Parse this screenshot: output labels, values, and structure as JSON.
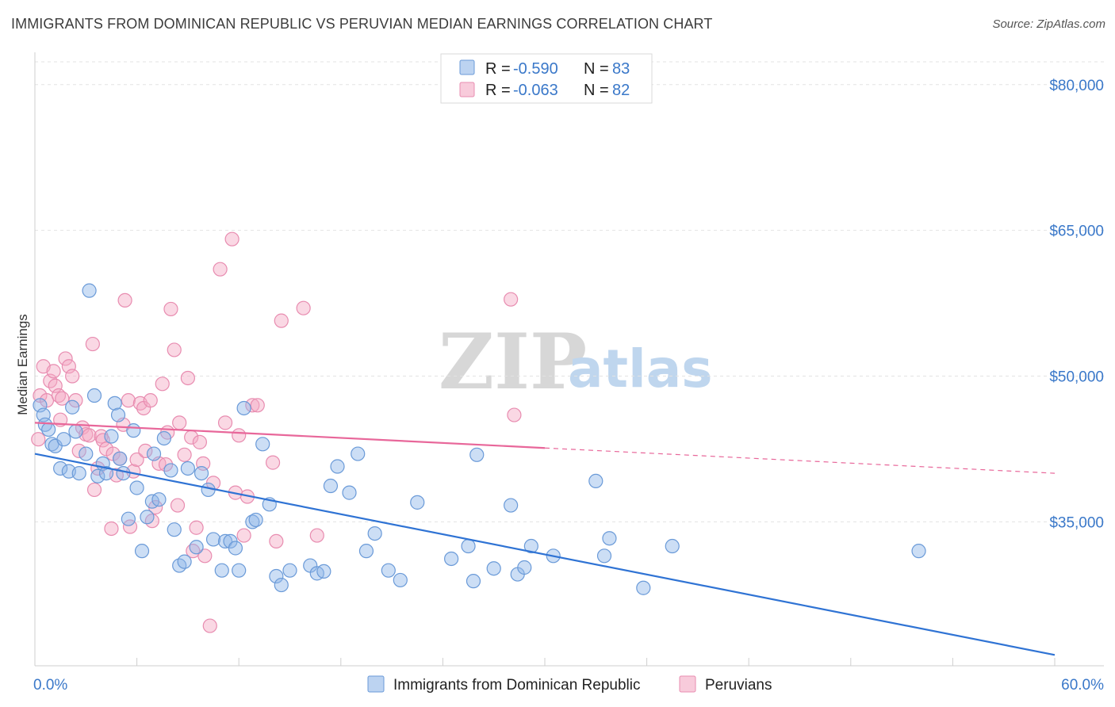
{
  "title": "IMMIGRANTS FROM DOMINICAN REPUBLIC VS PERUVIAN MEDIAN EARNINGS CORRELATION CHART",
  "source": "Source: ZipAtlas.com",
  "watermark": {
    "zip": "ZIP",
    "atlas": "atlas"
  },
  "colors": {
    "blue": "#8fb5e8",
    "blue_stroke": "#6a9ad8",
    "blue_line": "#2f73d4",
    "pink": "#f3a8c3",
    "pink_stroke": "#e88cb0",
    "pink_line": "#e8679a",
    "axis_text": "#3a78c9"
  },
  "legend_top": {
    "rows": [
      {
        "r_label": "R =",
        "r_value": "-0.590",
        "n_label": "N =",
        "n_value": "83"
      },
      {
        "r_label": "R =",
        "r_value": "-0.063",
        "n_label": "N =",
        "n_value": "82"
      }
    ]
  },
  "chart_data": {
    "type": "scatter",
    "title": "IMMIGRANTS FROM DOMINICAN REPUBLIC VS PERUVIAN MEDIAN EARNINGS CORRELATION CHART",
    "xlabel": "",
    "ylabel": "Median Earnings",
    "xlim": [
      0,
      60
    ],
    "ylim": [
      21000,
      83000
    ],
    "x_tick_labels": [
      "0.0%",
      "60.0%"
    ],
    "y_ticks": [
      35000,
      50000,
      65000,
      80000
    ],
    "y_tick_labels": [
      "$35,000",
      "$50,000",
      "$65,000",
      "$80,000"
    ],
    "grid": true,
    "legend_position": "top-center",
    "series": [
      {
        "name": "Immigrants from Dominican Republic",
        "r": -0.59,
        "n": 83,
        "trend": {
          "x0": 0,
          "y0": 42000,
          "x1": 60,
          "y1": 21300,
          "solid_until": 60
        },
        "points": [
          [
            0.3,
            47000
          ],
          [
            0.5,
            46000
          ],
          [
            0.6,
            45000
          ],
          [
            0.8,
            44500
          ],
          [
            1.0,
            43000
          ],
          [
            1.2,
            42800
          ],
          [
            1.5,
            40500
          ],
          [
            1.7,
            43500
          ],
          [
            2.0,
            40200
          ],
          [
            2.2,
            46800
          ],
          [
            2.4,
            44300
          ],
          [
            2.6,
            40000
          ],
          [
            3.0,
            42000
          ],
          [
            3.2,
            58800
          ],
          [
            3.5,
            48000
          ],
          [
            3.7,
            39700
          ],
          [
            4.0,
            41000
          ],
          [
            4.2,
            40000
          ],
          [
            4.5,
            43800
          ],
          [
            4.7,
            47200
          ],
          [
            4.9,
            46000
          ],
          [
            5.0,
            41500
          ],
          [
            5.2,
            40000
          ],
          [
            5.5,
            35300
          ],
          [
            5.8,
            44400
          ],
          [
            6.0,
            38500
          ],
          [
            6.3,
            32000
          ],
          [
            6.6,
            35500
          ],
          [
            6.9,
            37100
          ],
          [
            7.0,
            42000
          ],
          [
            7.3,
            37300
          ],
          [
            7.6,
            43600
          ],
          [
            8.0,
            40300
          ],
          [
            8.2,
            34200
          ],
          [
            8.5,
            30500
          ],
          [
            8.8,
            30900
          ],
          [
            9.0,
            40500
          ],
          [
            9.5,
            32400
          ],
          [
            9.8,
            40000
          ],
          [
            10.2,
            38300
          ],
          [
            10.5,
            33200
          ],
          [
            11.0,
            30000
          ],
          [
            11.2,
            33000
          ],
          [
            11.5,
            33000
          ],
          [
            11.8,
            32300
          ],
          [
            12.0,
            30000
          ],
          [
            12.3,
            46700
          ],
          [
            12.8,
            35000
          ],
          [
            13.0,
            35200
          ],
          [
            13.4,
            43000
          ],
          [
            13.8,
            36800
          ],
          [
            14.2,
            29400
          ],
          [
            14.5,
            28500
          ],
          [
            15.0,
            30000
          ],
          [
            16.2,
            30500
          ],
          [
            16.6,
            29700
          ],
          [
            17.0,
            29900
          ],
          [
            17.4,
            38700
          ],
          [
            17.8,
            40700
          ],
          [
            18.5,
            38000
          ],
          [
            19.0,
            42000
          ],
          [
            19.5,
            32000
          ],
          [
            20.0,
            33800
          ],
          [
            20.8,
            30000
          ],
          [
            21.5,
            29000
          ],
          [
            22.5,
            37000
          ],
          [
            24.5,
            31200
          ],
          [
            25.5,
            32500
          ],
          [
            25.8,
            28900
          ],
          [
            26.0,
            41900
          ],
          [
            27.0,
            30200
          ],
          [
            28.0,
            36700
          ],
          [
            28.4,
            29600
          ],
          [
            28.8,
            30300
          ],
          [
            29.2,
            32500
          ],
          [
            30.5,
            31500
          ],
          [
            33.0,
            39200
          ],
          [
            33.5,
            31500
          ],
          [
            33.8,
            33300
          ],
          [
            35.8,
            28200
          ],
          [
            37.5,
            32500
          ],
          [
            52.0,
            32000
          ]
        ]
      },
      {
        "name": "Peruvians",
        "r": -0.063,
        "n": 82,
        "trend": {
          "x0": 0,
          "y0": 45200,
          "x1": 60,
          "y1": 40000,
          "solid_until": 30
        },
        "points": [
          [
            0.2,
            43500
          ],
          [
            0.3,
            48000
          ],
          [
            0.5,
            51000
          ],
          [
            0.7,
            47500
          ],
          [
            0.9,
            49500
          ],
          [
            1.1,
            50500
          ],
          [
            1.2,
            49000
          ],
          [
            1.4,
            48000
          ],
          [
            1.5,
            45500
          ],
          [
            1.6,
            47700
          ],
          [
            1.8,
            51800
          ],
          [
            2.0,
            51000
          ],
          [
            2.2,
            50000
          ],
          [
            2.4,
            47500
          ],
          [
            2.6,
            42300
          ],
          [
            2.8,
            44700
          ],
          [
            3.0,
            44000
          ],
          [
            3.2,
            43900
          ],
          [
            3.4,
            53300
          ],
          [
            3.5,
            38300
          ],
          [
            3.7,
            40500
          ],
          [
            3.9,
            43800
          ],
          [
            4.0,
            43400
          ],
          [
            4.2,
            42500
          ],
          [
            4.5,
            34300
          ],
          [
            4.6,
            42000
          ],
          [
            4.8,
            39800
          ],
          [
            5.0,
            41500
          ],
          [
            5.2,
            45000
          ],
          [
            5.3,
            57800
          ],
          [
            5.5,
            47500
          ],
          [
            5.6,
            34500
          ],
          [
            5.8,
            40200
          ],
          [
            6.0,
            41400
          ],
          [
            6.2,
            47200
          ],
          [
            6.4,
            46700
          ],
          [
            6.5,
            42300
          ],
          [
            6.8,
            47500
          ],
          [
            6.9,
            35100
          ],
          [
            7.1,
            36500
          ],
          [
            7.3,
            41000
          ],
          [
            7.5,
            49200
          ],
          [
            7.7,
            40900
          ],
          [
            7.8,
            44200
          ],
          [
            8.0,
            56900
          ],
          [
            8.2,
            52700
          ],
          [
            8.4,
            36700
          ],
          [
            8.5,
            45200
          ],
          [
            8.8,
            41900
          ],
          [
            9.0,
            49800
          ],
          [
            9.2,
            43700
          ],
          [
            9.3,
            32000
          ],
          [
            9.5,
            34400
          ],
          [
            9.7,
            43200
          ],
          [
            9.9,
            41000
          ],
          [
            10.0,
            31500
          ],
          [
            10.3,
            24300
          ],
          [
            10.5,
            39000
          ],
          [
            10.9,
            61000
          ],
          [
            11.2,
            45200
          ],
          [
            11.6,
            64100
          ],
          [
            11.8,
            38000
          ],
          [
            12.0,
            43900
          ],
          [
            12.3,
            33600
          ],
          [
            12.5,
            37600
          ],
          [
            12.8,
            47000
          ],
          [
            13.1,
            47000
          ],
          [
            14.0,
            41100
          ],
          [
            14.2,
            33000
          ],
          [
            14.5,
            55700
          ],
          [
            15.8,
            57000
          ],
          [
            16.6,
            33600
          ],
          [
            28.0,
            57900
          ],
          [
            28.2,
            46000
          ]
        ]
      }
    ]
  },
  "legend_bottom": [
    {
      "label": "Immigrants from Dominican Republic"
    },
    {
      "label": "Peruvians"
    }
  ]
}
